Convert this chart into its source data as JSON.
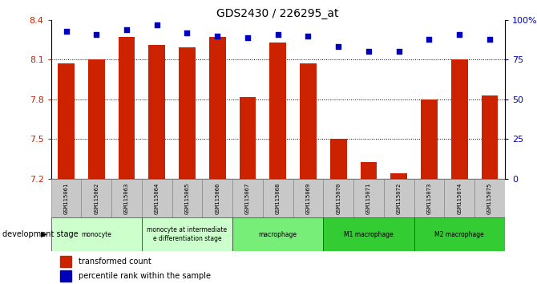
{
  "title": "GDS2430 / 226295_at",
  "samples": [
    "GSM115061",
    "GSM115062",
    "GSM115063",
    "GSM115064",
    "GSM115065",
    "GSM115066",
    "GSM115067",
    "GSM115068",
    "GSM115069",
    "GSM115070",
    "GSM115071",
    "GSM115072",
    "GSM115073",
    "GSM115074",
    "GSM115075"
  ],
  "bar_values": [
    8.07,
    8.1,
    8.27,
    8.21,
    8.19,
    8.27,
    7.82,
    8.23,
    8.07,
    7.5,
    7.33,
    7.24,
    7.8,
    8.1,
    7.83
  ],
  "percentile_values": [
    93,
    91,
    94,
    97,
    92,
    90,
    89,
    91,
    90,
    83,
    80,
    80,
    88,
    91,
    88
  ],
  "bar_color": "#CC2200",
  "dot_color": "#0000BB",
  "ylim_left": [
    7.2,
    8.4
  ],
  "ylim_right": [
    0,
    100
  ],
  "yticks_left": [
    7.2,
    7.5,
    7.8,
    8.1,
    8.4
  ],
  "yticks_right": [
    0,
    25,
    50,
    75,
    100
  ],
  "grid_values": [
    7.5,
    7.8,
    8.1
  ],
  "stage_info": [
    {
      "label": "monocyte",
      "start": 0,
      "end": 2,
      "color": "#ccffcc"
    },
    {
      "label": "monocyte at intermediate\ne differentiation stage",
      "start": 3,
      "end": 5,
      "color": "#ccffcc"
    },
    {
      "label": "macrophage",
      "start": 6,
      "end": 8,
      "color": "#77ee77"
    },
    {
      "label": "M1 macrophage",
      "start": 9,
      "end": 11,
      "color": "#33cc33"
    },
    {
      "label": "M2 macrophage",
      "start": 12,
      "end": 14,
      "color": "#33cc33"
    }
  ],
  "xlabel_stage": "development stage",
  "legend_bar": "transformed count",
  "legend_dot": "percentile rank within the sample",
  "tick_color_left": "#CC2200",
  "tick_color_right": "#0000BB",
  "gray_color": "#c8c8c8"
}
